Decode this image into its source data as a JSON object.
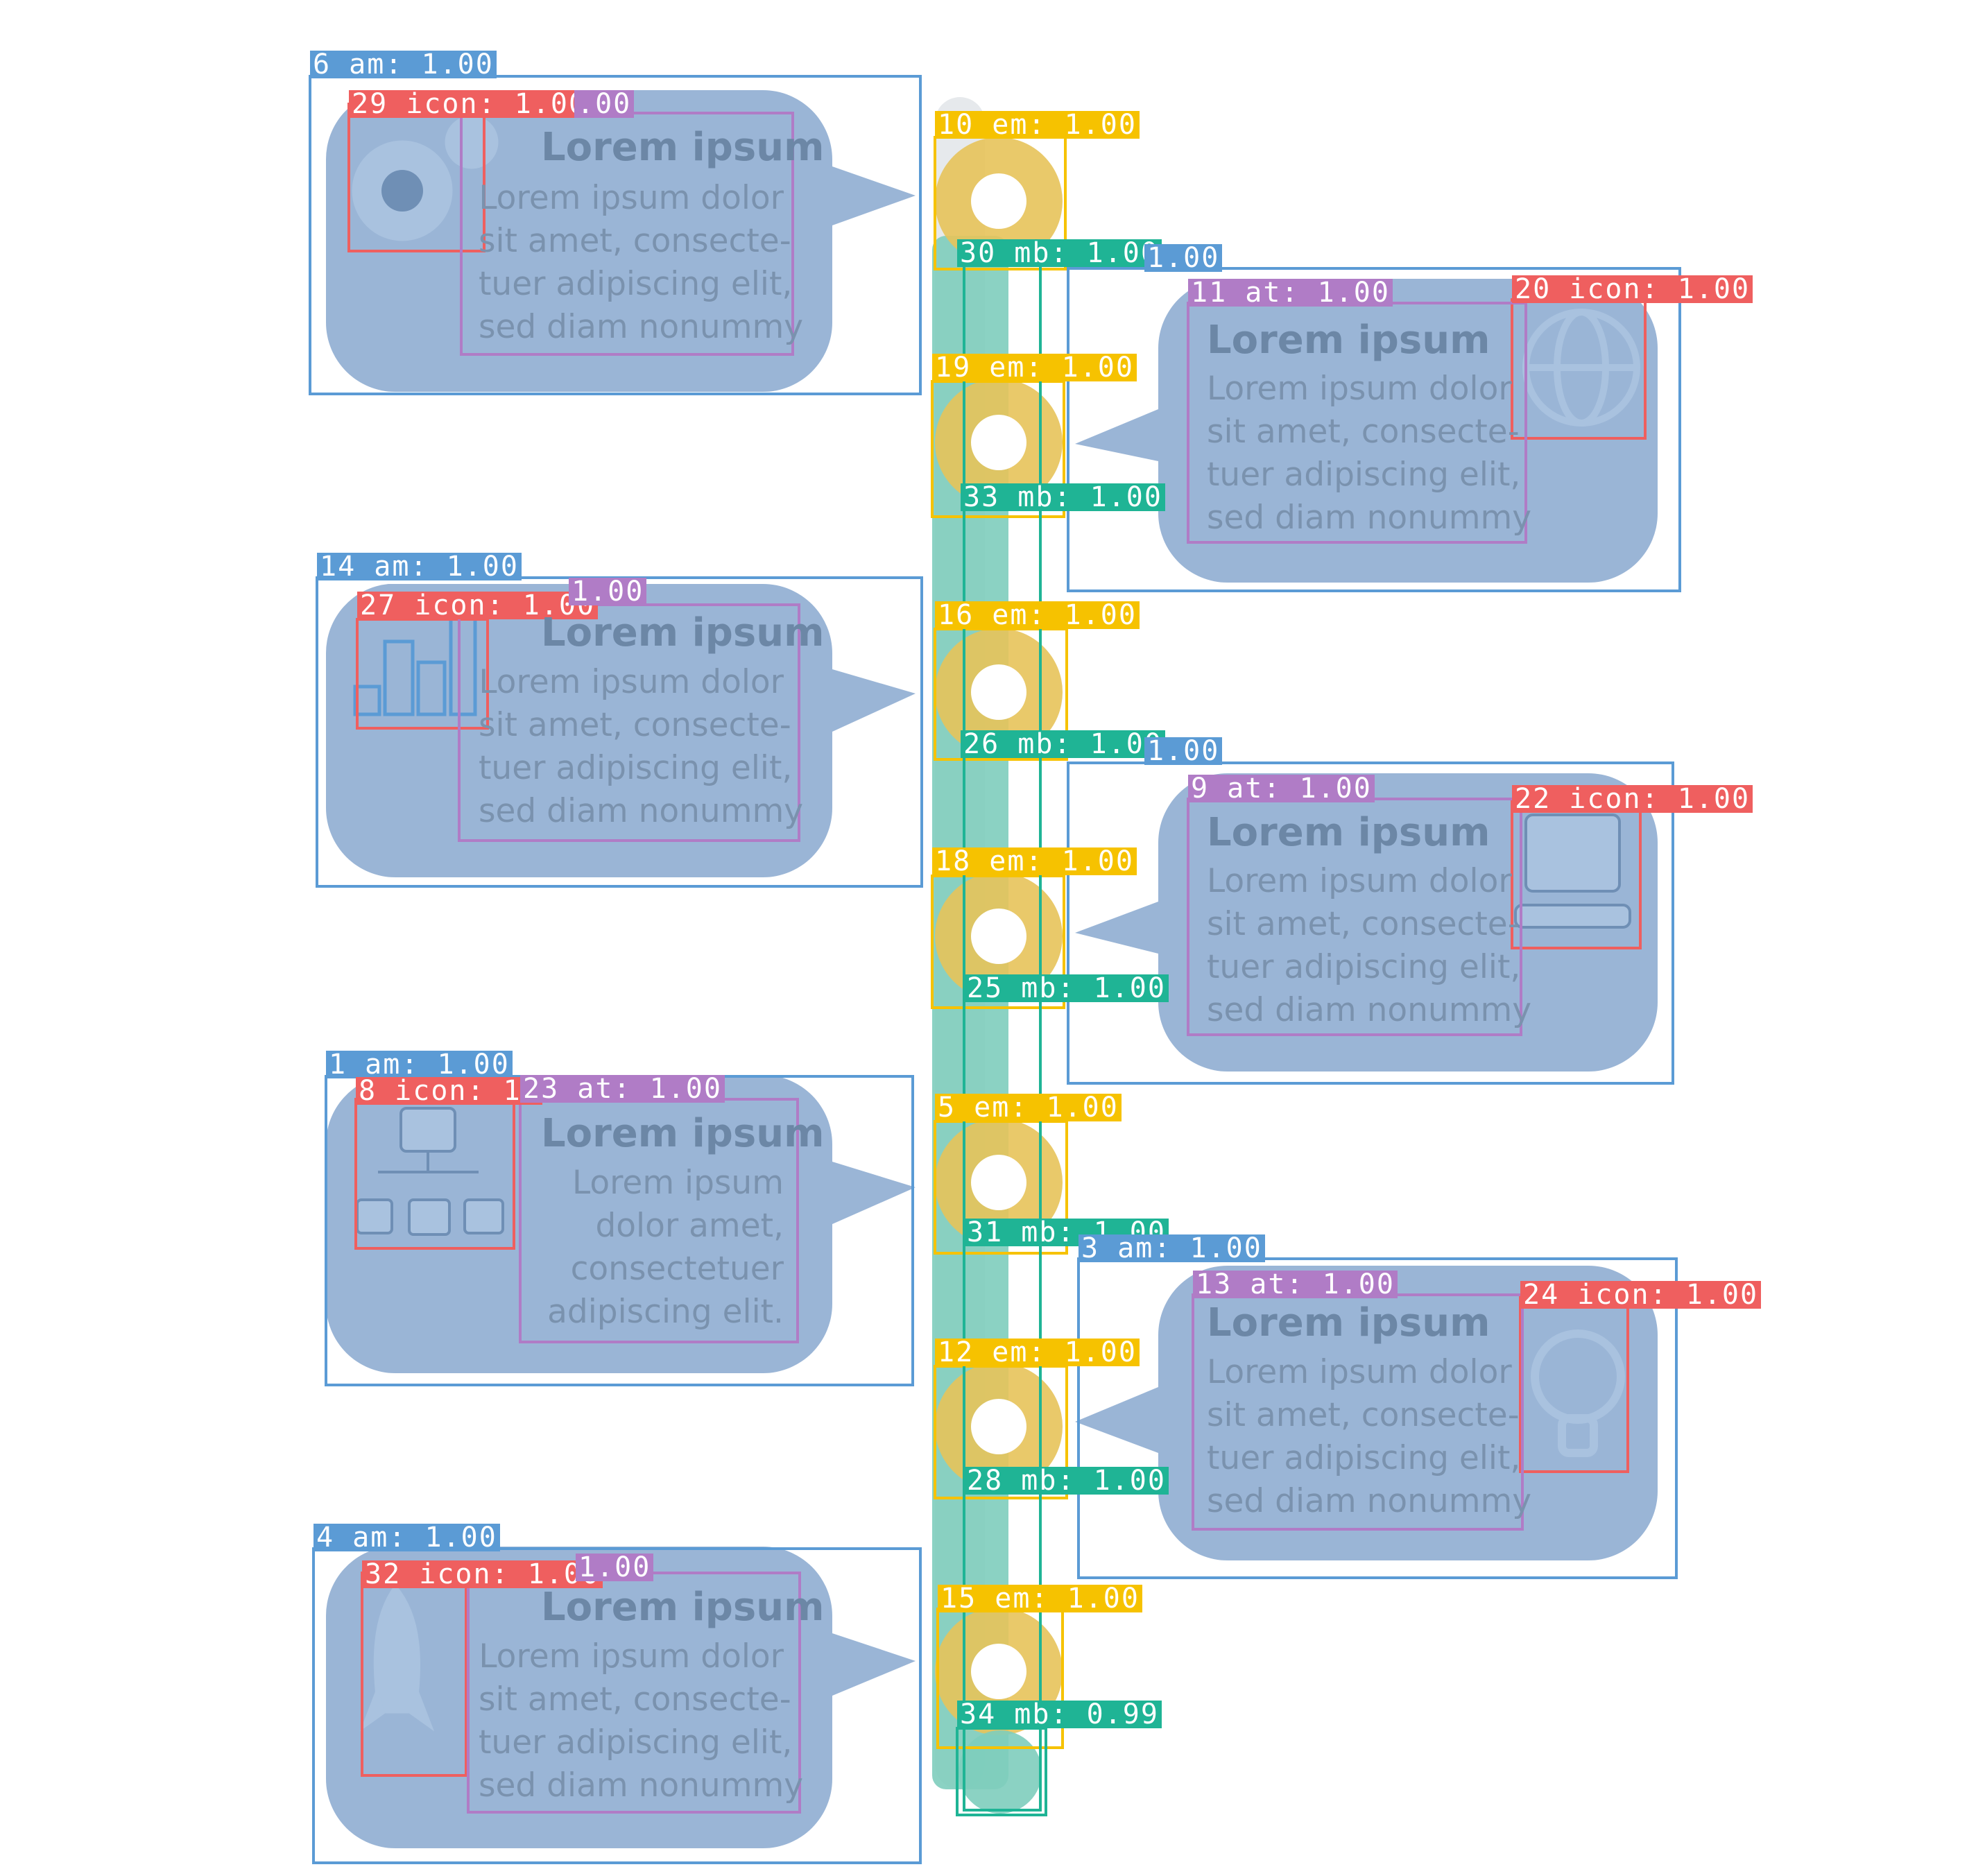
{
  "colors": {
    "bubble": "#8fadd1",
    "box_am": "#5b9bd5",
    "box_icon": "#ef5f5f",
    "box_at": "#b07cc6",
    "box_em": "#f6c200",
    "box_mb": "#1fb495",
    "ring": "#e7c35a",
    "stem": "#7ecdbd"
  },
  "labels": {
    "l6": "6 am: 1.00",
    "l29": "29 icon: 1.00",
    "l29b": ".00",
    "l10": "10 em: 1.00",
    "l30": "30 mb: 1.00",
    "l30b": "1.00",
    "l11": "11 at: 1.00",
    "l20": "20 icon: 1.00",
    "l19": "19 em: 1.00",
    "l33": "33 mb: 1.00",
    "l14": "14 am: 1.00",
    "l27": "27 icon: 1.00",
    "l27b": "1.00",
    "l16": "16 em: 1.00",
    "l26": "26 mb: 1.00",
    "l26b": "1.00",
    "l9": "9 at: 1.00",
    "l22": "22 icon: 1.00",
    "l18": "18 em: 1.00",
    "l25": "25 mb: 1.00",
    "l1": "1 am: 1.00",
    "l8": "8 icon: 1.",
    "l23": "23 at: 1.00",
    "l5": "5 em: 1.00",
    "l31": "31 mb: 1.00",
    "l3": "3 am: 1.00",
    "l13": "13 at: 1.00",
    "l24": "24 icon: 1.00",
    "l12": "12 em: 1.00",
    "l28": "28 mb: 1.00",
    "l4": "4 am: 1.00",
    "l32": "32 icon: 1.00",
    "l32b": "1.00",
    "l15": "15 em: 1.00",
    "l34": "34 mb: 0.99"
  },
  "cards": {
    "c1": {
      "title": "Lorem ipsum",
      "lines": [
        "Lorem ipsum dolor",
        "sit amet, consecte-",
        "tuer adipiscing elit,",
        "sed diam nonummy"
      ],
      "icon": "gears-icon"
    },
    "c2": {
      "title": "Lorem ipsum",
      "lines": [
        "Lorem ipsum dolor",
        "sit amet, consecte-",
        "tuer adipiscing elit,",
        "sed diam nonummy"
      ],
      "icon": "globe-icon"
    },
    "c3": {
      "title": "Lorem ipsum",
      "lines": [
        "Lorem ipsum dolor",
        "sit amet, consecte-",
        "tuer adipiscing elit,",
        "sed diam nonummy"
      ],
      "icon": "bar-chart-icon"
    },
    "c4": {
      "title": "Lorem ipsum",
      "lines": [
        "Lorem ipsum dolor",
        "sit amet, consecte-",
        "tuer adipiscing elit,",
        "sed diam nonummy"
      ],
      "icon": "laptop-icon"
    },
    "c5": {
      "title": "Lorem ipsum",
      "lines": [
        "Lorem ipsum",
        "dolor  amet,",
        "consectetuer",
        "adipiscing elit."
      ],
      "icon": "org-chart-icon"
    },
    "c6": {
      "title": "Lorem ipsum",
      "lines": [
        "Lorem ipsum dolor",
        "sit amet, consecte-",
        "tuer adipiscing elit,",
        "sed diam nonummy"
      ],
      "icon": "lightbulb-icon"
    },
    "c7": {
      "title": "Lorem ipsum",
      "lines": [
        "Lorem ipsum dolor",
        "sit amet, consecte-",
        "tuer adipiscing elit,",
        "sed diam nonummy"
      ],
      "icon": "rocket-icon"
    }
  }
}
